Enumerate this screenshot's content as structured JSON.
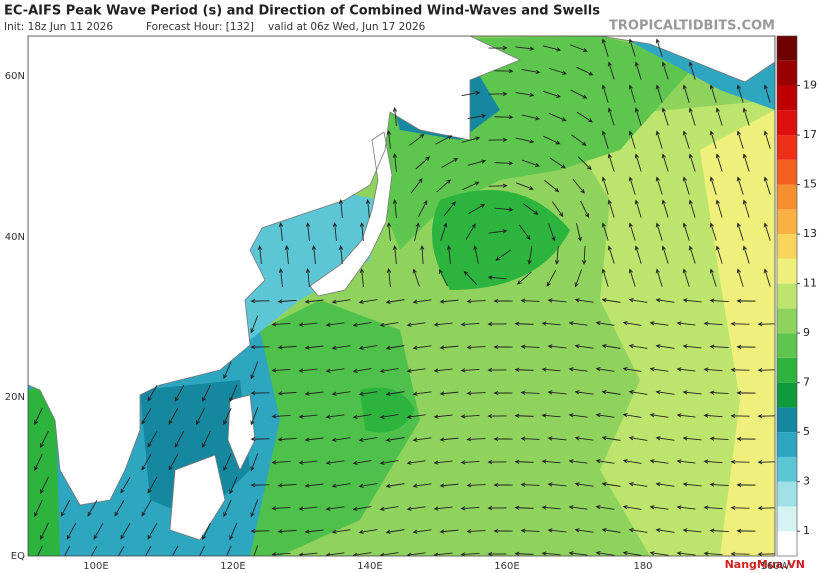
{
  "header": {
    "title": "EC-AIFS Peak Wave Period (s) and Direction of Combined Wind-Waves and Swells",
    "init": "Init: 18z Jun 11 2026",
    "forecast_hour": "Forecast Hour: [132]",
    "valid": "valid at 06z Wed, Jun 17 2026",
    "source": "TROPICALTIDBITS.COM"
  },
  "map": {
    "lat_labels": [
      "60N",
      "40N",
      "20N",
      "EQ"
    ],
    "lon_labels": [
      "100E",
      "120E",
      "140E",
      "160E",
      "180",
      "160W"
    ]
  },
  "colorbar": {
    "range": [
      0,
      21
    ],
    "ticks": [
      1,
      3,
      5,
      7,
      9,
      11,
      13,
      15,
      17,
      19
    ],
    "colors": [
      "#ffffff",
      "#d6f3f3",
      "#9fe0e6",
      "#5cc6d4",
      "#2ea6c0",
      "#15879f",
      "#0f9a3c",
      "#2db43f",
      "#5ec64e",
      "#8fd35e",
      "#bde56d",
      "#eff07c",
      "#f8d65e",
      "#f8b142",
      "#f68f30",
      "#f4611f",
      "#ee3019",
      "#dd1010",
      "#bd0000",
      "#9a0000",
      "#6e0000"
    ]
  },
  "watermark": "NangMua.VN"
}
